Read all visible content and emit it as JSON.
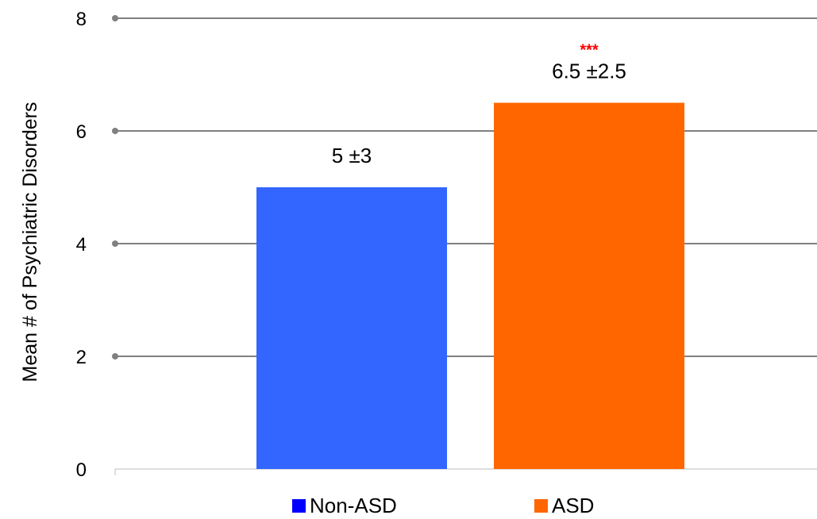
{
  "chart_data": {
    "type": "bar",
    "ylabel": "Mean  # of Psychiatric Disorders",
    "xlabel": "",
    "ylim": [
      0,
      8
    ],
    "yticks": [
      0,
      2,
      4,
      6,
      8
    ],
    "grid": true,
    "legend_position": "bottom",
    "series": [
      {
        "name": "Non-ASD",
        "value": 5,
        "data_label": "5 ±3",
        "color": "#3366ff",
        "legend_color": "#0000ff"
      },
      {
        "name": "ASD",
        "value": 6.5,
        "data_label": "6.5 ±2.5",
        "color": "#ff6600",
        "legend_color": "#ff6600",
        "significance": "***"
      }
    ],
    "significance_color": "#ff0000",
    "grid_color": "#808080"
  }
}
